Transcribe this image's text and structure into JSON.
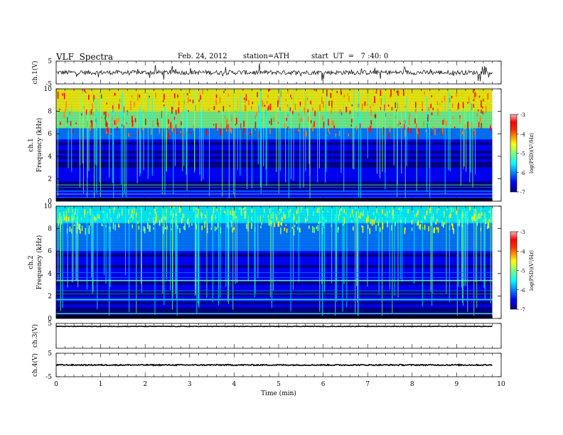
{
  "header": {
    "title": "VLF  Spectra",
    "date": "Feb. 24, 2012",
    "station": "station=ATH",
    "start": "start  UT  =   7 :40: 0"
  },
  "chart_data": [
    {
      "type": "line",
      "panel": "ch1-waveform",
      "ylabel": "ch.1(V)",
      "ylim": [
        -5,
        5
      ],
      "yticks": [
        5,
        -5
      ],
      "xlim": [
        0,
        10
      ],
      "description_series": {
        "name": "",
        "mean": 0,
        "noise_amplitude": 1.0
      }
    },
    {
      "type": "heatmap",
      "panel": "ch1-spectrogram",
      "ylabel_line1": "ch.1",
      "ylabel_line2": "Frequency (kHz)",
      "ylim": [
        0,
        10
      ],
      "yticks": [
        0,
        2,
        4,
        6,
        8,
        10
      ],
      "xlim": [
        0,
        9.8
      ],
      "colorbar": {
        "label": "log(PSD)(V²/Hz)",
        "min": -7,
        "max": -3,
        "ticks": [
          -3,
          -4,
          -5,
          -6,
          -7
        ]
      },
      "cutoff_khz": 6
    },
    {
      "type": "heatmap",
      "panel": "ch2-spectrogram",
      "ylabel_line1": "ch.2",
      "ylabel_line2": "Frequency (kHz)",
      "ylim": [
        0,
        10
      ],
      "yticks": [
        0,
        2,
        4,
        6,
        8,
        10
      ],
      "xlim": [
        0,
        9.8
      ],
      "colorbar": {
        "label": "log(PSD)(V²/Hz)",
        "min": -7,
        "max": -3,
        "ticks": [
          -3,
          -4,
          -5,
          -6,
          -7
        ]
      },
      "cutoff_khz": 8
    },
    {
      "type": "line",
      "panel": "ch3-waveform",
      "ylabel": "ch.3(V)",
      "ylim": [
        -5,
        5
      ],
      "yticks": [
        5
      ],
      "xlim": [
        0,
        10
      ],
      "description_series": {
        "name": "",
        "mean": 3.8,
        "noise_amplitude": 0.1
      }
    },
    {
      "type": "line",
      "panel": "ch4-waveform",
      "ylabel": "ch.4(V)",
      "ylim": [
        -5,
        5
      ],
      "yticks": [
        5,
        -5
      ],
      "xlim": [
        0,
        10
      ],
      "description_series": {
        "name": "",
        "mean": 0,
        "noise_amplitude": 0.25
      }
    }
  ],
  "xaxis": {
    "label": "Time  (min)",
    "ticks": [
      0,
      1,
      2,
      3,
      4,
      5,
      6,
      7,
      8,
      9,
      10
    ],
    "range": [
      0,
      10
    ]
  },
  "colors": {
    "jet": [
      "#00007f",
      "#0000ff",
      "#007fff",
      "#00ffff",
      "#7fff7f",
      "#ffff00",
      "#ff7f00",
      "#ff0000",
      "#ffb0b0"
    ]
  }
}
